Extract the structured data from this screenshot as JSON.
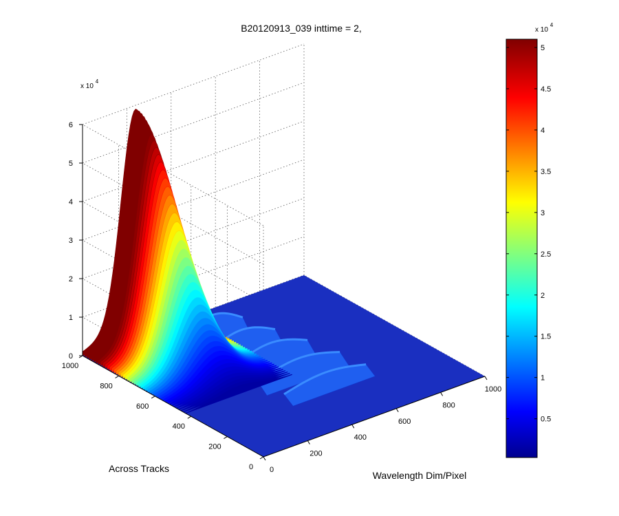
{
  "chart_data": {
    "type": "surface3d",
    "title": "B20120913_039 inttime = 2,",
    "xlabel": "Wavelength Dim/Pixel",
    "ylabel": "Across Tracks",
    "zlabel": "",
    "x_range": [
      0,
      1000
    ],
    "y_range": [
      0,
      1000
    ],
    "z_range": [
      0,
      6
    ],
    "z_multiplier_label": "x 10",
    "z_multiplier_exp": "4",
    "x_ticks": [
      "0",
      "200",
      "400",
      "600",
      "800",
      "1000"
    ],
    "y_ticks": [
      "0",
      "200",
      "400",
      "600",
      "800",
      "1000"
    ],
    "z_ticks": [
      "0",
      "1",
      "2",
      "3",
      "4",
      "5",
      "6"
    ],
    "grid": true,
    "colormap": "jet",
    "colorbar": {
      "range": [
        0.03,
        5.1
      ],
      "ticks": [
        "0.5",
        "1",
        "1.5",
        "2",
        "2.5",
        "3",
        "3.5",
        "4",
        "4.5",
        "5"
      ],
      "multiplier_label": "x 10",
      "multiplier_exp": "4"
    },
    "main_peak": {
      "x": 240,
      "peak_z": 5.9,
      "y_start": 1000,
      "y_end": 430
    },
    "secondary_peak": {
      "x": 350,
      "y": 960,
      "z": 2.0
    },
    "ridges": [
      {
        "y": 800,
        "x_from": 280,
        "x_to": 560,
        "z": 0.7
      },
      {
        "y": 670,
        "x_from": 290,
        "x_to": 600,
        "z": 0.6
      },
      {
        "y": 540,
        "x_from": 300,
        "x_to": 640,
        "z": 0.55
      },
      {
        "y": 410,
        "x_from": 310,
        "x_to": 680,
        "z": 0.45
      },
      {
        "y": 290,
        "x_from": 330,
        "x_to": 700,
        "z": 0.35
      }
    ],
    "colors": {
      "floor": "#1a2fc0",
      "axis": "#000000",
      "grid": "#555555"
    }
  }
}
